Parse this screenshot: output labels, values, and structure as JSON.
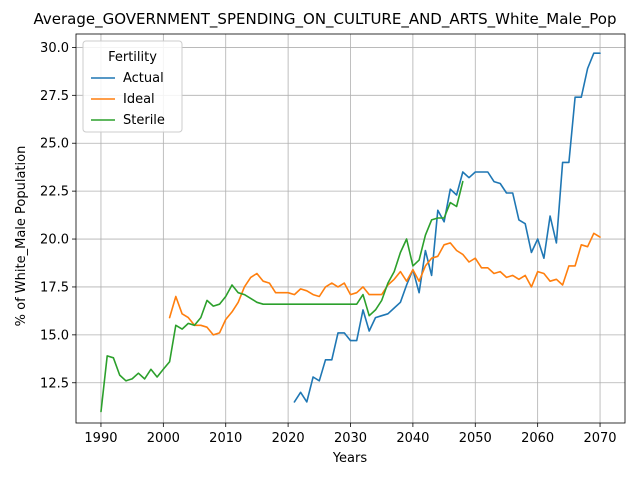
{
  "chart_data": {
    "type": "line",
    "title": "Average_GOVERNMENT_SPENDING_ON_CULTURE_AND_ARTS_White_Male_Pop",
    "xlabel": "Years",
    "ylabel": "% of White_Male Population",
    "xlim": [
      1986,
      2074
    ],
    "ylim": [
      10.4,
      30.7
    ],
    "xticks": [
      1990,
      2000,
      2010,
      2020,
      2030,
      2040,
      2050,
      2060,
      2070
    ],
    "yticks": [
      12.5,
      15.0,
      17.5,
      20.0,
      22.5,
      25.0,
      27.5,
      30.0
    ],
    "ytick_labels": [
      "12.5",
      "15.0",
      "17.5",
      "20.0",
      "22.5",
      "25.0",
      "27.5",
      "30.0"
    ],
    "grid": true,
    "legend": {
      "title": "Fertility",
      "placement": "top-left"
    },
    "series": [
      {
        "name": "Actual",
        "color": "#1f77b4",
        "x": [
          2021,
          2022,
          2023,
          2024,
          2025,
          2026,
          2027,
          2028,
          2029,
          2030,
          2031,
          2032,
          2033,
          2034,
          2035,
          2036,
          2037,
          2038,
          2039,
          2040,
          2041,
          2042,
          2043,
          2044,
          2045,
          2046,
          2047,
          2048,
          2049,
          2050,
          2051,
          2052,
          2053,
          2054,
          2055,
          2056,
          2057,
          2058,
          2059,
          2060,
          2061,
          2062,
          2063,
          2064,
          2065,
          2066,
          2067,
          2068,
          2069,
          2070
        ],
        "y": [
          11.5,
          12.0,
          11.5,
          12.8,
          12.6,
          13.7,
          13.7,
          15.1,
          15.1,
          14.7,
          14.7,
          16.3,
          15.2,
          15.9,
          16.0,
          16.1,
          16.4,
          16.7,
          17.6,
          18.4,
          17.2,
          19.4,
          18.1,
          21.5,
          20.9,
          22.6,
          22.3,
          23.5,
          23.2,
          23.5,
          23.5,
          23.5,
          23.0,
          22.9,
          22.4,
          22.4,
          21.0,
          20.8,
          19.3,
          20.0,
          19.0,
          21.2,
          19.8,
          24.0,
          24.0,
          27.4,
          27.4,
          28.9,
          29.7,
          29.7
        ]
      },
      {
        "name": "Ideal",
        "color": "#ff7f0e",
        "x": [
          2001,
          2002,
          2003,
          2004,
          2005,
          2006,
          2007,
          2008,
          2009,
          2010,
          2011,
          2012,
          2013,
          2014,
          2015,
          2016,
          2017,
          2018,
          2019,
          2020,
          2021,
          2022,
          2023,
          2024,
          2025,
          2026,
          2027,
          2028,
          2029,
          2030,
          2031,
          2032,
          2033,
          2034,
          2035,
          2036,
          2037,
          2038,
          2039,
          2040,
          2041,
          2042,
          2043,
          2044,
          2045,
          2046,
          2047,
          2048,
          2049,
          2050,
          2051,
          2052,
          2053,
          2054,
          2055,
          2056,
          2057,
          2058,
          2059,
          2060,
          2061,
          2062,
          2063,
          2064,
          2065,
          2066,
          2067,
          2068,
          2069,
          2070
        ],
        "y": [
          15.9,
          17.0,
          16.1,
          15.9,
          15.5,
          15.5,
          15.4,
          15.0,
          15.1,
          15.8,
          16.2,
          16.7,
          17.5,
          18.0,
          18.2,
          17.8,
          17.7,
          17.2,
          17.2,
          17.2,
          17.1,
          17.4,
          17.3,
          17.1,
          17.0,
          17.5,
          17.7,
          17.5,
          17.7,
          17.1,
          17.2,
          17.5,
          17.1,
          17.1,
          17.1,
          17.6,
          17.9,
          18.3,
          17.8,
          18.4,
          17.8,
          18.6,
          19.0,
          19.1,
          19.7,
          19.8,
          19.4,
          19.2,
          18.8,
          19.0,
          18.5,
          18.5,
          18.2,
          18.3,
          18.0,
          18.1,
          17.9,
          18.1,
          17.5,
          18.3,
          18.2,
          17.8,
          17.9,
          17.6,
          18.6,
          18.6,
          19.7,
          19.6,
          20.3,
          20.1
        ]
      },
      {
        "name": "Sterile",
        "color": "#2ca02c",
        "x": [
          1990,
          1991,
          1992,
          1993,
          1994,
          1995,
          1996,
          1997,
          1998,
          1999,
          2000,
          2001,
          2002,
          2003,
          2004,
          2005,
          2006,
          2007,
          2008,
          2009,
          2010,
          2011,
          2012,
          2013,
          2014,
          2015,
          2016,
          2017,
          2018,
          2019,
          2020,
          2021,
          2022,
          2023,
          2024,
          2025,
          2026,
          2027,
          2028,
          2029,
          2030,
          2031,
          2032,
          2033,
          2034,
          2035,
          2036,
          2037,
          2038,
          2039,
          2040,
          2041,
          2042,
          2043,
          2044,
          2045,
          2046,
          2047,
          2048
        ],
        "y": [
          11.0,
          13.9,
          13.8,
          12.9,
          12.6,
          12.7,
          13.0,
          12.7,
          13.2,
          12.8,
          13.2,
          13.6,
          15.5,
          15.3,
          15.6,
          15.5,
          15.9,
          16.8,
          16.5,
          16.6,
          17.0,
          17.6,
          17.2,
          17.1,
          16.9,
          16.7,
          16.6,
          16.6,
          16.6,
          16.6,
          16.6,
          16.6,
          16.6,
          16.6,
          16.6,
          16.6,
          16.6,
          16.6,
          16.6,
          16.6,
          16.6,
          16.6,
          17.1,
          16.0,
          16.3,
          16.8,
          17.7,
          18.3,
          19.3,
          20.0,
          18.6,
          18.9,
          20.2,
          21.0,
          21.1,
          21.1,
          21.9,
          21.7,
          23.0
        ]
      }
    ]
  }
}
